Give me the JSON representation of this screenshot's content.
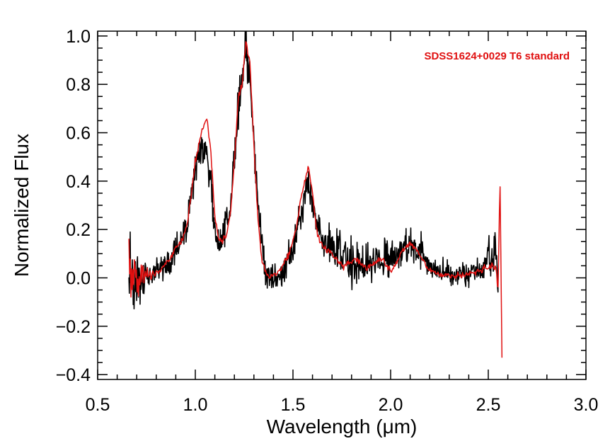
{
  "chart_data": {
    "type": "line",
    "xlabel": "Wavelength (μm)",
    "ylabel": "Normalized Flux",
    "xlim": [
      0.5,
      3.0
    ],
    "ylim": [
      -0.42,
      1.02
    ],
    "x_ticks": [
      "0.5",
      "1.0",
      "1.5",
      "2.0",
      "2.5",
      "3.0"
    ],
    "y_ticks": [
      "−0.4",
      "−0.2",
      "0.0",
      "0.2",
      "0.4",
      "0.6",
      "0.8",
      "1.0"
    ],
    "x_tick_values": [
      0.5,
      1.0,
      1.5,
      2.0,
      2.5,
      3.0
    ],
    "y_tick_values": [
      -0.4,
      -0.2,
      0.0,
      0.2,
      0.4,
      0.6,
      0.8,
      1.0
    ],
    "grid": false,
    "legend_text": "SDSS1624+0029 T6 standard",
    "legend_position": "top-right",
    "series": [
      {
        "color": "#000000",
        "x": [
          0.66,
          0.68,
          0.7,
          0.72,
          0.74,
          0.76,
          0.78,
          0.8,
          0.82,
          0.84,
          0.86,
          0.88,
          0.9,
          0.92,
          0.94,
          0.96,
          0.98,
          1.0,
          1.02,
          1.04,
          1.06,
          1.08,
          1.1,
          1.12,
          1.14,
          1.16,
          1.18,
          1.2,
          1.22,
          1.24,
          1.26,
          1.28,
          1.3,
          1.32,
          1.34,
          1.36,
          1.38,
          1.4,
          1.42,
          1.44,
          1.46,
          1.48,
          1.5,
          1.52,
          1.54,
          1.56,
          1.58,
          1.6,
          1.62,
          1.64,
          1.66,
          1.68,
          1.7,
          1.72,
          1.74,
          1.76,
          1.78,
          1.8,
          1.82,
          1.84,
          1.86,
          1.88,
          1.9,
          1.92,
          1.94,
          1.96,
          1.98,
          2.0,
          2.02,
          2.04,
          2.06,
          2.08,
          2.1,
          2.12,
          2.14,
          2.16,
          2.18,
          2.2,
          2.22,
          2.24,
          2.26,
          2.28,
          2.3,
          2.32,
          2.34,
          2.36,
          2.38,
          2.4,
          2.42,
          2.44,
          2.46,
          2.48,
          2.5,
          2.52,
          2.54,
          2.55
        ],
        "y": [
          0.05,
          0.01,
          0.0,
          -0.01,
          0.0,
          0.0,
          0.01,
          0.02,
          0.03,
          0.04,
          0.06,
          0.08,
          0.11,
          0.14,
          0.17,
          0.22,
          0.33,
          0.45,
          0.52,
          0.55,
          0.5,
          0.4,
          0.18,
          0.16,
          0.17,
          0.22,
          0.3,
          0.5,
          0.72,
          0.82,
          0.96,
          0.8,
          0.55,
          0.3,
          0.15,
          0.05,
          0.0,
          -0.02,
          0.0,
          0.02,
          0.05,
          0.08,
          0.12,
          0.18,
          0.26,
          0.33,
          0.4,
          0.32,
          0.22,
          0.18,
          0.15,
          0.14,
          0.12,
          0.1,
          0.09,
          0.08,
          0.07,
          0.06,
          0.06,
          0.07,
          0.06,
          0.05,
          0.06,
          0.07,
          0.08,
          0.07,
          0.08,
          0.09,
          0.1,
          0.1,
          0.11,
          0.12,
          0.13,
          0.12,
          0.11,
          0.1,
          0.08,
          0.06,
          0.04,
          0.03,
          0.02,
          0.02,
          0.02,
          0.01,
          0.01,
          0.02,
          0.02,
          0.02,
          0.03,
          0.03,
          0.04,
          0.05,
          0.07,
          0.1,
          0.14,
          0.02
        ],
        "noise": [
          0.1,
          0.1,
          0.09,
          0.08,
          0.06,
          0.05,
          0.04,
          0.04,
          0.04,
          0.04,
          0.04,
          0.04,
          0.04,
          0.05,
          0.05,
          0.05,
          0.05,
          0.05,
          0.05,
          0.05,
          0.06,
          0.06,
          0.05,
          0.05,
          0.05,
          0.05,
          0.05,
          0.06,
          0.07,
          0.08,
          0.08,
          0.07,
          0.06,
          0.05,
          0.05,
          0.05,
          0.06,
          0.06,
          0.05,
          0.05,
          0.05,
          0.05,
          0.05,
          0.05,
          0.05,
          0.05,
          0.05,
          0.05,
          0.05,
          0.05,
          0.05,
          0.06,
          0.06,
          0.06,
          0.06,
          0.06,
          0.07,
          0.07,
          0.06,
          0.07,
          0.08,
          0.07,
          0.06,
          0.06,
          0.05,
          0.06,
          0.06,
          0.06,
          0.06,
          0.05,
          0.06,
          0.06,
          0.06,
          0.05,
          0.05,
          0.05,
          0.05,
          0.04,
          0.04,
          0.04,
          0.04,
          0.04,
          0.04,
          0.04,
          0.04,
          0.04,
          0.04,
          0.04,
          0.04,
          0.04,
          0.05,
          0.05,
          0.06,
          0.07,
          0.08,
          0.1
        ]
      },
      {
        "color": "#e01010",
        "x": [
          0.66,
          0.68,
          0.7,
          0.72,
          0.74,
          0.76,
          0.78,
          0.8,
          0.82,
          0.84,
          0.86,
          0.88,
          0.9,
          0.92,
          0.94,
          0.96,
          0.98,
          1.0,
          1.02,
          1.04,
          1.06,
          1.08,
          1.1,
          1.12,
          1.14,
          1.16,
          1.18,
          1.2,
          1.22,
          1.24,
          1.26,
          1.28,
          1.3,
          1.32,
          1.34,
          1.36,
          1.38,
          1.4,
          1.42,
          1.44,
          1.46,
          1.48,
          1.5,
          1.52,
          1.54,
          1.56,
          1.58,
          1.6,
          1.62,
          1.64,
          1.66,
          1.68,
          1.7,
          1.72,
          1.74,
          1.76,
          1.78,
          1.8,
          1.82,
          1.84,
          1.86,
          1.88,
          1.9,
          1.92,
          1.94,
          1.96,
          1.98,
          2.0,
          2.02,
          2.04,
          2.06,
          2.08,
          2.1,
          2.12,
          2.14,
          2.16,
          2.18,
          2.2,
          2.22,
          2.24,
          2.26,
          2.28,
          2.3,
          2.32,
          2.34,
          2.36,
          2.38,
          2.4,
          2.42,
          2.44,
          2.46,
          2.48,
          2.5,
          2.52,
          2.54,
          2.55,
          2.56,
          2.57
        ],
        "y": [
          0.05,
          0.03,
          0.01,
          0.0,
          0.01,
          0.01,
          0.01,
          0.02,
          0.03,
          0.05,
          0.07,
          0.09,
          0.12,
          0.14,
          0.17,
          0.23,
          0.35,
          0.48,
          0.56,
          0.63,
          0.66,
          0.52,
          0.25,
          0.16,
          0.15,
          0.18,
          0.27,
          0.48,
          0.74,
          0.8,
          0.98,
          0.88,
          0.55,
          0.25,
          0.08,
          0.02,
          0.01,
          0.01,
          0.02,
          0.04,
          0.07,
          0.1,
          0.15,
          0.22,
          0.33,
          0.4,
          0.46,
          0.35,
          0.2,
          0.15,
          0.12,
          0.11,
          0.1,
          0.08,
          0.06,
          0.05,
          0.06,
          0.07,
          0.08,
          0.07,
          0.05,
          0.04,
          0.05,
          0.06,
          0.08,
          0.07,
          0.05,
          0.03,
          0.05,
          0.08,
          0.11,
          0.13,
          0.14,
          0.13,
          0.11,
          0.08,
          0.05,
          0.03,
          0.02,
          0.02,
          0.01,
          0.01,
          0.01,
          0.01,
          0.01,
          0.01,
          0.01,
          0.02,
          0.02,
          0.02,
          0.03,
          0.04,
          0.04,
          0.05,
          0.04,
          -0.05,
          0.41,
          -0.33
        ],
        "noise": [
          0.1,
          0.09,
          0.07,
          0.06,
          0.04,
          0.03,
          0.02,
          0.01,
          0.01,
          0.01,
          0.01,
          0.01,
          0.01,
          0.01,
          0.01,
          0.01,
          0.01,
          0.01,
          0.01,
          0.01,
          0.01,
          0.01,
          0.01,
          0.01,
          0.01,
          0.01,
          0.01,
          0.01,
          0.01,
          0.01,
          0.01,
          0.01,
          0.01,
          0.01,
          0.01,
          0.01,
          0.01,
          0.01,
          0.01,
          0.01,
          0.01,
          0.01,
          0.01,
          0.01,
          0.01,
          0.01,
          0.01,
          0.01,
          0.01,
          0.01,
          0.01,
          0.01,
          0.01,
          0.01,
          0.01,
          0.01,
          0.01,
          0.01,
          0.01,
          0.01,
          0.01,
          0.01,
          0.01,
          0.01,
          0.01,
          0.01,
          0.01,
          0.01,
          0.01,
          0.01,
          0.01,
          0.01,
          0.01,
          0.01,
          0.01,
          0.01,
          0.01,
          0.01,
          0.01,
          0.01,
          0.01,
          0.01,
          0.01,
          0.01,
          0.01,
          0.01,
          0.01,
          0.01,
          0.01,
          0.01,
          0.01,
          0.01,
          0.01,
          0.01,
          0.01,
          0.02,
          0.01,
          0.0
        ]
      }
    ]
  }
}
